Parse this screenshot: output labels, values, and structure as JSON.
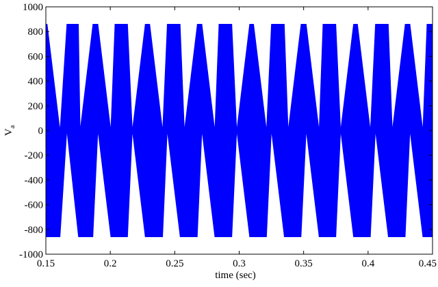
{
  "chart_data": {
    "type": "line",
    "title": "",
    "xlabel": "time (sec)",
    "ylabel_main": "V",
    "ylabel_sub": "a",
    "xlim": [
      0.15,
      0.45
    ],
    "ylim": [
      -1000,
      1000
    ],
    "x_ticks": [
      "0.15",
      "0.2",
      "0.25",
      "0.3",
      "0.35",
      "0.4",
      "0.45"
    ],
    "y_ticks": [
      "1000",
      "800",
      "600",
      "400",
      "200",
      "0",
      "-200",
      "-400",
      "-600",
      "-800",
      "-1000"
    ],
    "grid": false,
    "series": [
      {
        "color": "#0000ff",
        "x": [
          0.15,
          0.151,
          0.161,
          0.1663,
          0.1753,
          0.1766,
          0.1865,
          0.1904,
          0.2004,
          0.2036,
          0.2134,
          0.2171,
          0.2271,
          0.2306,
          0.2406,
          0.2442,
          0.2542,
          0.2575,
          0.2675,
          0.2711,
          0.2811,
          0.2843,
          0.2943,
          0.2981,
          0.3081,
          0.3112,
          0.3212,
          0.325,
          0.335,
          0.338,
          0.348,
          0.352,
          0.362,
          0.365,
          0.375,
          0.3787,
          0.3887,
          0.3918,
          0.4018,
          0.4057,
          0.4157,
          0.4188,
          0.4288,
          0.4325,
          0.4425,
          0.4457,
          0.45
        ],
        "band_min": [
          -860,
          -860,
          -860,
          0,
          -860,
          -860,
          -860,
          0,
          -860,
          -860,
          -860,
          0,
          -860,
          -860,
          -860,
          0,
          -860,
          -860,
          -860,
          0,
          -860,
          -860,
          -860,
          0,
          -860,
          -860,
          -860,
          0,
          -860,
          -860,
          -860,
          0,
          -860,
          -860,
          -860,
          0,
          -860,
          -860,
          -860,
          0,
          -860,
          -860,
          -860,
          0,
          -860,
          -860,
          -860
        ],
        "band_max": [
          860,
          860,
          0,
          860,
          860,
          0,
          860,
          860,
          0,
          860,
          860,
          0,
          860,
          860,
          0,
          860,
          860,
          0,
          860,
          860,
          0,
          860,
          860,
          0,
          860,
          860,
          0,
          860,
          860,
          0,
          860,
          860,
          0,
          860,
          860,
          0,
          860,
          860,
          0,
          860,
          860,
          0,
          860,
          860,
          0,
          860,
          860
        ]
      }
    ]
  }
}
